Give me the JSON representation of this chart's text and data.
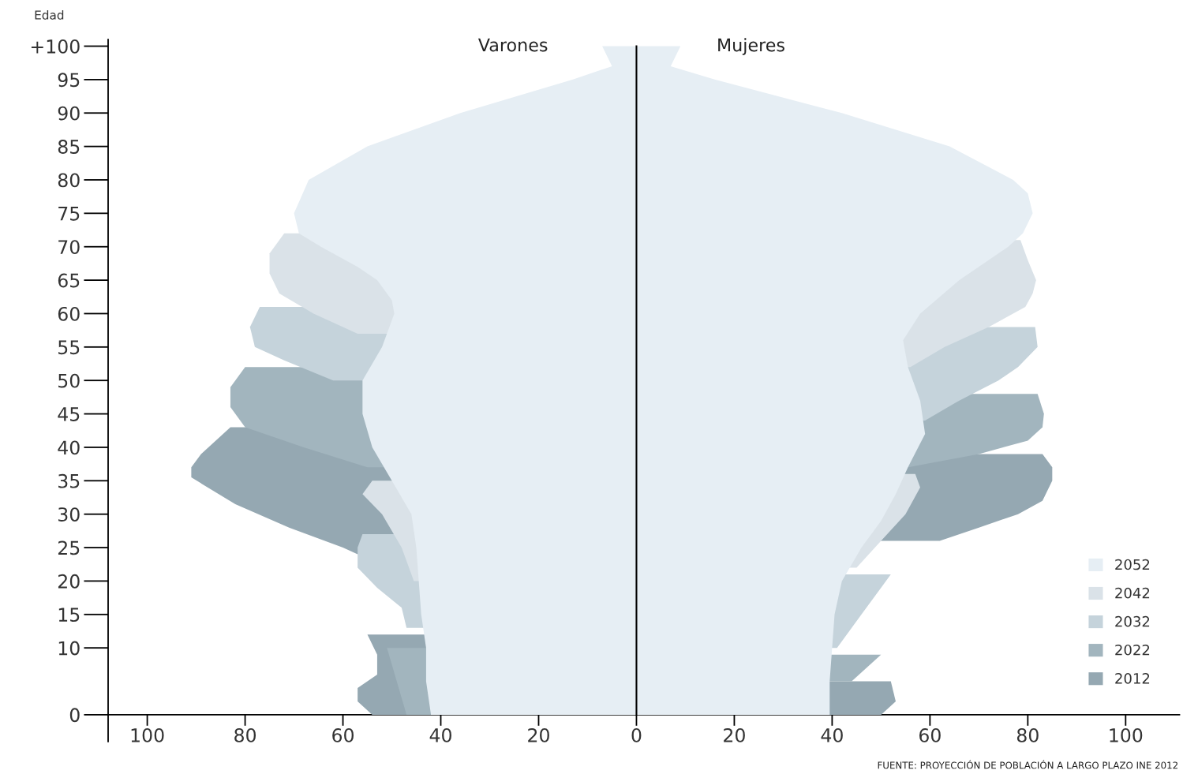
{
  "chart_data": {
    "type": "area",
    "orientation": "horizontal",
    "ylabel": "Edad",
    "annotations": [
      "Varones",
      "Mujeres",
      "FUENTE: PROYECCIÓN DE POBLACIÓN A LARGO PLAZO INE 2012"
    ],
    "xlim": [
      -108,
      111
    ],
    "xticks": [
      {
        "value": -100,
        "label": "100"
      },
      {
        "value": -80,
        "label": "80"
      },
      {
        "value": -60,
        "label": "60"
      },
      {
        "value": -40,
        "label": "40"
      },
      {
        "value": -20,
        "label": "20"
      },
      0,
      20,
      40,
      60,
      80,
      100
    ],
    "ylim": [
      -4,
      101
    ],
    "yticks": [
      0,
      10,
      15,
      20,
      25,
      30,
      35,
      40,
      45,
      50,
      55,
      60,
      65,
      70,
      75,
      80,
      85,
      90,
      95,
      {
        "value": 100,
        "label": "+100"
      }
    ],
    "ref_lines": [
      {
        "axis": "x",
        "value": 0,
        "color": "#000000"
      }
    ],
    "legend": "bottom right",
    "grid": false,
    "series": [
      {
        "name": "2052",
        "color": "#e6eef4",
        "x": [
          0,
          5,
          10,
          15,
          20,
          25,
          29,
          33,
          37,
          42,
          47,
          52,
          56,
          60,
          65,
          70,
          72,
          75,
          78,
          80,
          85,
          90,
          95,
          97,
          100
        ],
        "values": [
          39.5,
          39.5,
          40,
          40.5,
          42,
          46,
          50,
          53,
          55.5,
          59,
          58,
          55.5,
          54.5,
          58,
          66,
          76,
          79,
          81,
          80,
          77,
          64,
          42,
          16,
          7,
          9
        ]
      },
      {
        "color": "#e6eef4",
        "x": [
          0,
          5,
          10,
          15,
          20,
          25,
          30,
          35,
          40,
          45,
          50,
          55,
          60,
          62,
          65,
          67,
          70,
          72,
          75,
          80,
          85,
          90,
          95,
          97,
          100
        ],
        "values": [
          -42,
          -43,
          -43,
          -44,
          -44.5,
          -45,
          -46,
          -50,
          -54,
          -56,
          -56,
          -52,
          -49.5,
          -50,
          -53,
          -57,
          -64.5,
          -69,
          -70,
          -67,
          -55,
          -36,
          -13,
          -5,
          -7
        ]
      },
      {
        "name": "2042",
        "color": "#dae2e8",
        "x": [
          22,
          26,
          30,
          34,
          36,
          null,
          52,
          55,
          58,
          61,
          63,
          65,
          68,
          71
        ],
        "values": [
          45,
          50,
          55,
          58,
          57,
          null,
          56,
          63,
          72,
          79.5,
          81,
          81.7,
          80,
          78.5
        ]
      },
      {
        "color": "#dae2e8",
        "x": [
          20,
          25,
          30,
          33,
          35,
          null,
          57,
          60,
          63,
          66,
          69,
          72
        ],
        "values": [
          -45.5,
          -48,
          -52,
          -56,
          -54,
          null,
          -57,
          -66,
          -73,
          -75,
          -75,
          -72
        ]
      },
      {
        "name": "2032",
        "color": "#c5d3db",
        "x": [
          10,
          15,
          19,
          21,
          null,
          44,
          47,
          50,
          52,
          55,
          58
        ],
        "values": [
          41,
          46,
          50,
          52,
          null,
          59,
          66,
          74,
          78,
          82,
          81.5
        ]
      },
      {
        "color": "#c5d3db",
        "x": [
          13,
          16,
          19,
          22,
          25,
          27,
          null,
          50,
          53,
          55,
          58,
          61
        ],
        "values": [
          -47,
          -48,
          -53,
          -57,
          -57,
          -56,
          null,
          -62,
          -72,
          -78,
          -79,
          -77
        ]
      },
      {
        "name": "2022",
        "color": "#a2b5be",
        "x": [
          5,
          9,
          null,
          37,
          39,
          41,
          43,
          45,
          48
        ],
        "values": [
          44,
          50,
          null,
          55.5,
          70,
          80,
          83,
          83.3,
          82
        ]
      },
      {
        "color": "#a2b5be",
        "x": [
          0,
          5,
          10,
          null,
          37,
          40,
          43,
          46,
          49,
          52
        ],
        "values": [
          -47,
          -49,
          -51,
          null,
          -55,
          -68,
          -80,
          -83,
          -83,
          -80
        ]
      },
      {
        "name": "2012",
        "color": "#95a8b2",
        "x": [
          0,
          2,
          5,
          null,
          26,
          28,
          30,
          32,
          35,
          37,
          39
        ],
        "values": [
          50,
          53,
          52,
          null,
          62,
          70,
          78,
          83,
          85,
          85,
          83
        ]
      },
      {
        "color": "#95a8b2",
        "x": [
          0,
          2,
          4,
          6,
          9,
          12,
          null,
          24,
          25,
          28,
          31.5,
          35.5,
          37,
          39,
          41,
          43
        ],
        "values": [
          -54,
          -57,
          -57,
          -53,
          -53,
          -55,
          null,
          -57,
          -60,
          -71,
          -82,
          -91,
          -91,
          -89,
          -86,
          -83
        ]
      }
    ]
  }
}
